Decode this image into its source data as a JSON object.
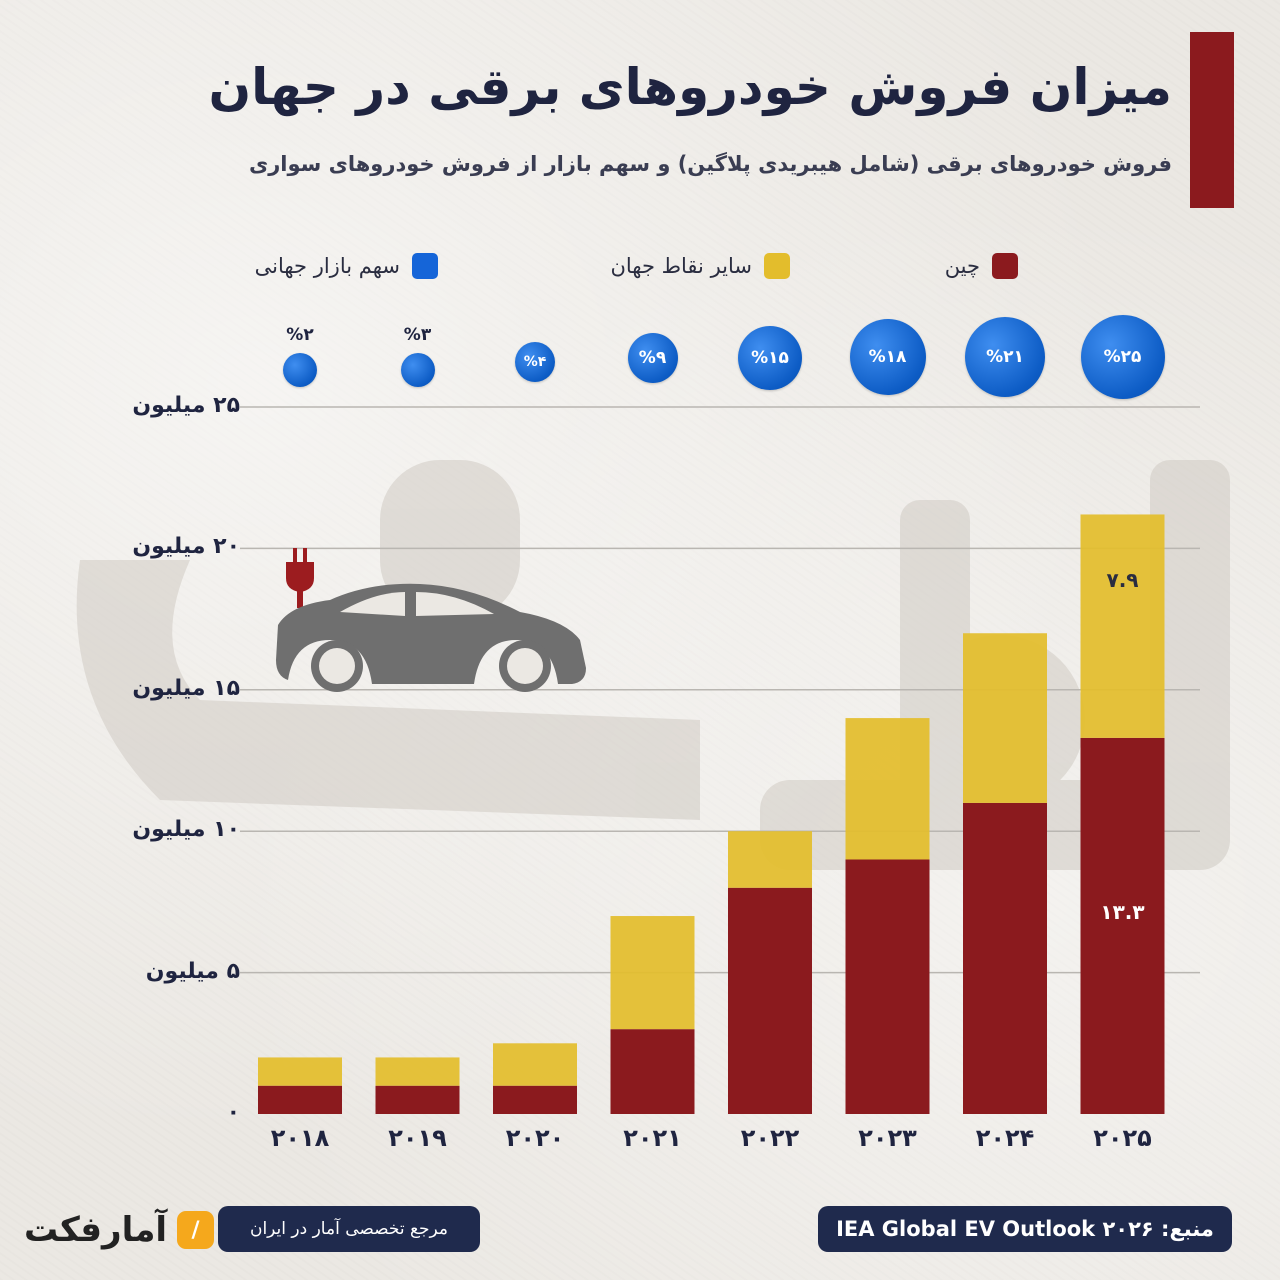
{
  "header": {
    "title": "میزان فروش خودروهای برقی در جهان",
    "subtitle": "فروش خودروهای برقی (شامل هیبریدی پلاگین) و سهم بازار از فروش خودروهای سواری"
  },
  "colors": {
    "china": "#8b1a1e",
    "rest": "#e3bd2c",
    "share": "#1565d8",
    "title_bar": "#8b1a1e",
    "grid": "#b9b6b1"
  },
  "legend": {
    "china": "چین",
    "rest": "سایر نقاط جهان",
    "share": "سهم بازار جهانی"
  },
  "chart_data": {
    "type": "bar",
    "stacked": true,
    "categories": [
      "۲۰۱۸",
      "۲۰۱۹",
      "۲۰۲۰",
      "۲۰۲۱",
      "۲۰۲۲",
      "۲۰۲۳",
      "۲۰۲۴",
      "۲۰۲۵"
    ],
    "series": [
      {
        "name": "چین",
        "values": [
          1.0,
          1.0,
          1.0,
          3.0,
          8.0,
          9.0,
          11.0,
          13.3
        ]
      },
      {
        "name": "سایر نقاط جهان",
        "values": [
          1.0,
          1.0,
          1.5,
          4.0,
          2.0,
          5.0,
          6.0,
          7.9
        ]
      }
    ],
    "market_share": {
      "name": "سهم بازار جهانی",
      "labels": [
        "%۲",
        "%۳",
        "%۴",
        "%۹",
        "%۱۵",
        "%۱۸",
        "%۲۱",
        "%۲۵"
      ],
      "values": [
        2,
        3,
        4,
        9,
        15,
        18,
        21,
        25
      ]
    },
    "data_labels": [
      {
        "category": "۲۰۲۵",
        "series": "سایر نقاط جهان",
        "text": "۷.۹"
      },
      {
        "category": "۲۰۲۵",
        "series": "چین",
        "text": "۱۳.۳"
      }
    ],
    "y_ticks": [
      {
        "value": 0,
        "label": "۰"
      },
      {
        "value": 5,
        "label": "۵ میلیون"
      },
      {
        "value": 10,
        "label": "۱۰ میلیون"
      },
      {
        "value": 15,
        "label": "۱۵ میلیون"
      },
      {
        "value": 20,
        "label": "۲۰ میلیون"
      },
      {
        "value": 25,
        "label": "۲۵ میلیون"
      }
    ],
    "ylim": [
      0,
      25
    ],
    "grid": true,
    "legend_position": "top"
  },
  "footer": {
    "source": "منبع: IEA Global EV Outlook ۲۰۲۶",
    "tagline": "مرجع تخصصی آمار در ایران",
    "brand": "آمارفکت"
  }
}
